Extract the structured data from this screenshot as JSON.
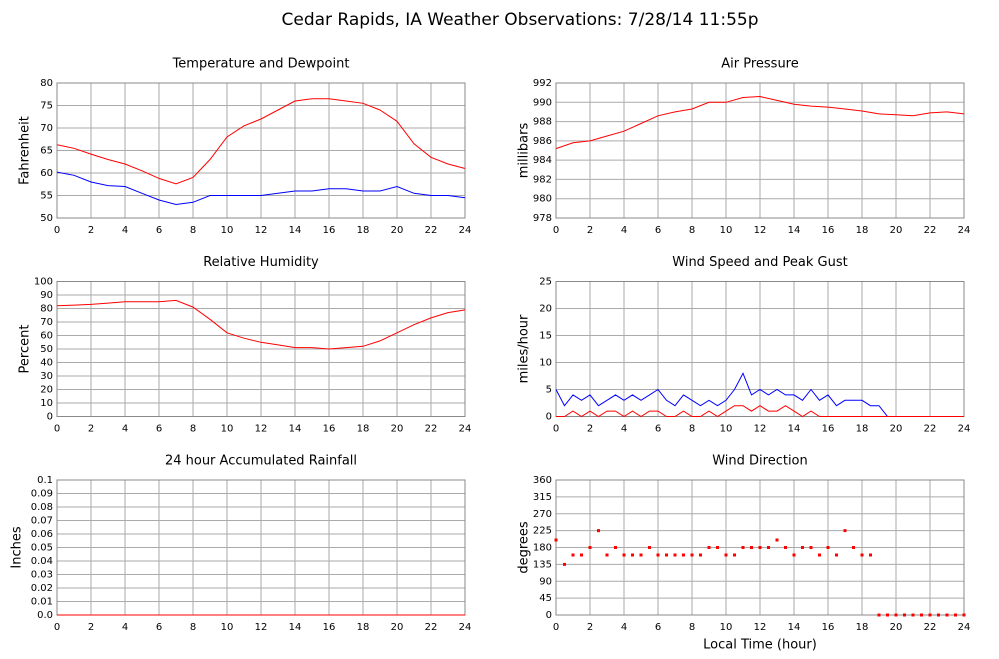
{
  "title": "Cedar Rapids, IA Weather Observations: 7/28/14 11:55p",
  "chart_data": [
    {
      "type": "line",
      "title": "Temperature and Dewpoint",
      "ylabel": "Fahrenheit",
      "x": [
        0,
        1,
        2,
        3,
        4,
        5,
        6,
        7,
        8,
        9,
        10,
        11,
        12,
        13,
        14,
        15,
        16,
        17,
        18,
        19,
        20,
        21,
        22,
        23,
        24
      ],
      "xlim": [
        0,
        24
      ],
      "xticks": [
        0,
        2,
        4,
        6,
        8,
        10,
        12,
        14,
        16,
        18,
        20,
        22,
        24
      ],
      "ylim": [
        50,
        80
      ],
      "yticks": [
        50,
        55,
        60,
        65,
        70,
        75,
        80
      ],
      "grid": true,
      "series": [
        {
          "name": "Temperature",
          "color": "#ff0000",
          "values": [
            66.3,
            65.5,
            64.2,
            63,
            62,
            60.5,
            58.8,
            57.6,
            59,
            63,
            68,
            70.5,
            72,
            74,
            76,
            76.5,
            76.5,
            76,
            75.5,
            74,
            71.5,
            66.5,
            63.5,
            62,
            61
          ]
        },
        {
          "name": "Dewpoint",
          "color": "#0000ff",
          "values": [
            60.2,
            59.5,
            58,
            57.2,
            57,
            55.5,
            54,
            53,
            53.5,
            55,
            55,
            55,
            55,
            55.5,
            56,
            56,
            56.5,
            56.5,
            56,
            56,
            57,
            55.5,
            55,
            55,
            54.5
          ]
        }
      ]
    },
    {
      "type": "line",
      "title": "Air Pressure",
      "ylabel": "millibars",
      "x": [
        0,
        1,
        2,
        3,
        4,
        5,
        6,
        7,
        8,
        9,
        10,
        11,
        12,
        13,
        14,
        15,
        16,
        17,
        18,
        19,
        20,
        21,
        22,
        23,
        24
      ],
      "xlim": [
        0,
        24
      ],
      "xticks": [
        0,
        2,
        4,
        6,
        8,
        10,
        12,
        14,
        16,
        18,
        20,
        22,
        24
      ],
      "ylim": [
        978,
        992
      ],
      "yticks": [
        978,
        980,
        982,
        984,
        986,
        988,
        990,
        992
      ],
      "grid": true,
      "series": [
        {
          "name": "Pressure",
          "color": "#ff0000",
          "values": [
            985.2,
            985.8,
            986,
            986.5,
            987,
            987.8,
            988.6,
            989,
            989.3,
            990,
            990,
            990.5,
            990.6,
            990.2,
            989.8,
            989.6,
            989.5,
            989.3,
            989.1,
            988.8,
            988.7,
            988.6,
            988.9,
            989,
            988.8
          ]
        }
      ]
    },
    {
      "type": "line",
      "title": "Relative Humidity",
      "ylabel": "Percent",
      "x": [
        0,
        1,
        2,
        3,
        4,
        5,
        6,
        7,
        8,
        9,
        10,
        11,
        12,
        13,
        14,
        15,
        16,
        17,
        18,
        19,
        20,
        21,
        22,
        23,
        24
      ],
      "xlim": [
        0,
        24
      ],
      "xticks": [
        0,
        2,
        4,
        6,
        8,
        10,
        12,
        14,
        16,
        18,
        20,
        22,
        24
      ],
      "ylim": [
        0,
        100
      ],
      "yticks": [
        0,
        10,
        20,
        30,
        40,
        50,
        60,
        70,
        80,
        90,
        100
      ],
      "grid": true,
      "series": [
        {
          "name": "Humidity",
          "color": "#ff0000",
          "values": [
            82,
            82.5,
            83,
            84,
            85,
            85,
            85,
            86,
            81,
            72,
            62,
            58,
            55,
            53,
            51,
            51,
            50,
            51,
            52,
            56,
            62,
            68,
            73,
            77,
            79
          ]
        }
      ]
    },
    {
      "type": "line",
      "title": "Wind Speed and Peak Gust",
      "ylabel": "miles/hour",
      "x": [
        0,
        0.5,
        1,
        1.5,
        2,
        2.5,
        3,
        3.5,
        4,
        4.5,
        5,
        5.5,
        6,
        6.5,
        7,
        7.5,
        8,
        8.5,
        9,
        9.5,
        10,
        10.5,
        11,
        11.5,
        12,
        12.5,
        13,
        13.5,
        14,
        14.5,
        15,
        15.5,
        16,
        16.5,
        17,
        17.5,
        18,
        18.5,
        19,
        19.5,
        20,
        20.5,
        21,
        21.5,
        22,
        22.5,
        23,
        23.5,
        24
      ],
      "xlim": [
        0,
        24
      ],
      "xticks": [
        0,
        2,
        4,
        6,
        8,
        10,
        12,
        14,
        16,
        18,
        20,
        22,
        24
      ],
      "ylim": [
        0,
        25
      ],
      "yticks": [
        0,
        5,
        10,
        15,
        20,
        25
      ],
      "grid": true,
      "series": [
        {
          "name": "Wind Speed",
          "color": "#0000ff",
          "values": [
            5,
            2,
            4,
            3,
            4,
            2,
            3,
            4,
            3,
            4,
            3,
            4,
            5,
            3,
            2,
            4,
            3,
            2,
            3,
            2,
            3,
            5,
            8,
            4,
            5,
            4,
            5,
            4,
            4,
            3,
            5,
            3,
            4,
            2,
            3,
            3,
            3,
            2,
            2,
            0,
            0,
            0,
            0,
            0,
            0,
            0,
            0,
            0,
            0
          ]
        },
        {
          "name": "Peak Gust",
          "color": "#ff0000",
          "values": [
            0,
            0,
            1,
            0,
            1,
            0,
            1,
            1,
            0,
            1,
            0,
            1,
            1,
            0,
            0,
            1,
            0,
            0,
            1,
            0,
            1,
            2,
            2,
            1,
            2,
            1,
            1,
            2,
            1,
            0,
            1,
            0,
            0,
            0,
            0,
            0,
            0,
            0,
            0,
            0,
            0,
            0,
            0,
            0,
            0,
            0,
            0,
            0,
            0
          ]
        }
      ]
    },
    {
      "type": "line",
      "title": "24 hour Accumulated Rainfall",
      "ylabel": "Inches",
      "x": [
        0,
        24
      ],
      "xlim": [
        0,
        24
      ],
      "xticks": [
        0,
        2,
        4,
        6,
        8,
        10,
        12,
        14,
        16,
        18,
        20,
        22,
        24
      ],
      "ylim": [
        0,
        0.1
      ],
      "yticks": [
        {
          "value": 0,
          "label": "0.0"
        },
        0.01,
        0.02,
        0.03,
        0.04,
        0.05,
        0.06,
        0.07,
        0.08,
        0.09,
        0.1
      ],
      "grid": true,
      "series": [
        {
          "name": "Rainfall",
          "color": "#ff0000",
          "values": [
            0,
            0
          ]
        }
      ]
    },
    {
      "type": "scatter",
      "title": "Wind Direction",
      "ylabel": "degrees",
      "xlabel": "Local Time (hour)",
      "x": [
        0,
        0.5,
        1,
        1.5,
        2,
        2.5,
        3,
        3.5,
        4,
        4.5,
        5,
        5.5,
        6,
        6.5,
        7,
        7.5,
        8,
        8.5,
        9,
        9.5,
        10,
        10.5,
        11,
        11.5,
        12,
        12.5,
        13,
        13.5,
        14,
        14.5,
        15,
        15.5,
        16,
        16.5,
        17,
        17.5,
        18,
        18.5,
        19,
        19.5,
        20,
        20.5,
        21,
        21.5,
        22,
        22.5,
        23,
        23.5,
        24
      ],
      "xlim": [
        0,
        24
      ],
      "xticks": [
        0,
        2,
        4,
        6,
        8,
        10,
        12,
        14,
        16,
        18,
        20,
        22,
        24
      ],
      "ylim": [
        0,
        360
      ],
      "yticks": [
        0,
        45,
        90,
        135,
        180,
        225,
        270,
        315,
        360
      ],
      "grid": true,
      "series": [
        {
          "name": "Direction",
          "color": "#ff0000",
          "values": [
            200,
            135,
            160,
            160,
            180,
            225,
            160,
            180,
            160,
            160,
            160,
            180,
            160,
            160,
            160,
            160,
            160,
            160,
            180,
            180,
            160,
            160,
            180,
            180,
            180,
            180,
            200,
            180,
            160,
            180,
            180,
            160,
            180,
            160,
            225,
            180,
            160,
            160,
            0,
            0,
            0,
            0,
            0,
            0,
            0,
            0,
            0,
            0,
            0
          ]
        }
      ]
    }
  ]
}
